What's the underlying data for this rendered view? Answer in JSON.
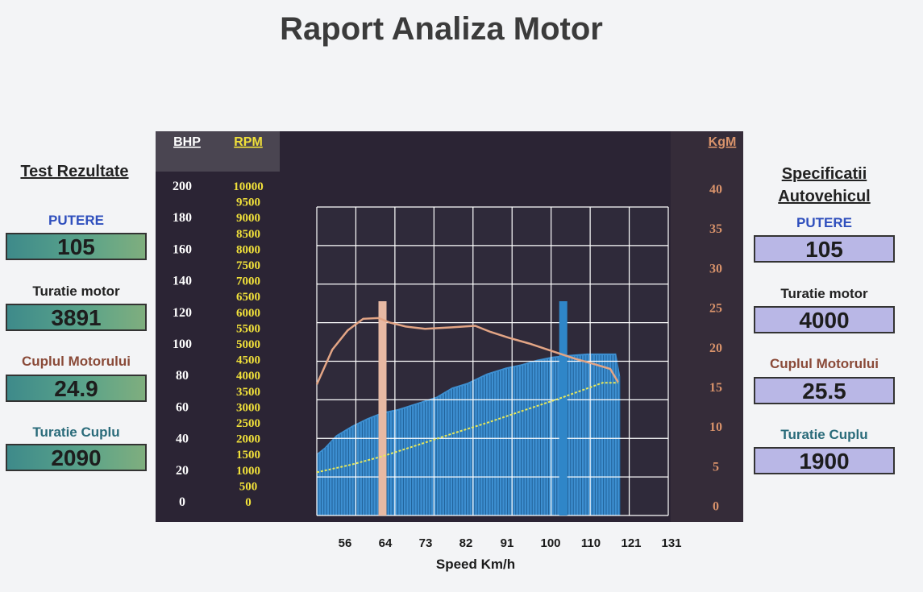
{
  "report_title": "Raport Analiza Motor",
  "left": {
    "heading": "Test Rezultate",
    "items": [
      {
        "label": "PUTERE",
        "value": "105",
        "color": "#2f4fbd"
      },
      {
        "label": "Turatie motor",
        "value": "3891",
        "color": "#222222"
      },
      {
        "label": "Cuplul Motorului",
        "value": "24.9",
        "color": "#8a4a38"
      },
      {
        "label": "Turatie Cuplu",
        "value": "2090",
        "color": "#2a6b7a"
      }
    ]
  },
  "right": {
    "heading_line1": "Specificatii",
    "heading_line2": "Autovehicul",
    "items": [
      {
        "label": "PUTERE",
        "value": "105",
        "color": "#2f4fbd"
      },
      {
        "label": "Turatie motor",
        "value": "4000",
        "color": "#222222"
      },
      {
        "label": "Cuplul Motorului",
        "value": "25.5",
        "color": "#8a4a38"
      },
      {
        "label": "Turatie Cuplu",
        "value": "1900",
        "color": "#2a6b7a"
      }
    ]
  },
  "chart_data": {
    "type": "area",
    "title": "",
    "xlabel": "Speed  Km/h",
    "x_ticks": [
      "56",
      "64",
      "73",
      "82",
      "91",
      "100",
      "110",
      "121",
      "131"
    ],
    "x_range": [
      47,
      138
    ],
    "axes": {
      "bhp": {
        "label": "BHP",
        "range": [
          0,
          200
        ],
        "ticks": [
          "200",
          "180",
          "160",
          "140",
          "120",
          "100",
          "80",
          "60",
          "40",
          "20",
          "0"
        ]
      },
      "rpm": {
        "label": "RPM",
        "range": [
          0,
          10000
        ],
        "ticks": [
          "10000",
          "9500",
          "9000",
          "8500",
          "8000",
          "7500",
          "7000",
          "6500",
          "6000",
          "5500",
          "5000",
          "4500",
          "4000",
          "3500",
          "3000",
          "2500",
          "2000",
          "1500",
          "1000",
          "500",
          "0"
        ]
      },
      "kgm": {
        "label": "KgM",
        "range": [
          0,
          40
        ],
        "ticks": [
          "40",
          "35",
          "30",
          "25",
          "20",
          "15",
          "10",
          "5",
          "0"
        ]
      }
    },
    "series": [
      {
        "name": "",
        "axis": "bhp",
        "color": "#3d8fd1",
        "x": [
          47,
          49,
          52,
          56,
          60,
          64,
          68,
          73,
          78,
          82,
          86,
          91,
          96,
          100,
          104,
          108,
          112,
          117,
          121,
          124.5,
          125.5
        ],
        "values": [
          40,
          44,
          52,
          58,
          63,
          67,
          69,
          73,
          77,
          83,
          86,
          92,
          96,
          98,
          101,
          103,
          104,
          105,
          105,
          105,
          91
        ]
      },
      {
        "name": "",
        "axis": "kgm",
        "color": "#e3a585",
        "x": [
          47,
          51,
          55,
          59,
          63,
          66,
          70,
          75,
          82,
          88,
          92,
          97,
          102,
          108,
          114,
          119,
          123,
          125
        ],
        "values": [
          17,
          21.5,
          24,
          25.5,
          25.6,
          25,
          24.5,
          24.2,
          24.4,
          24.6,
          23.8,
          23,
          22.3,
          21.3,
          20.3,
          19.6,
          19,
          17.3
        ]
      },
      {
        "name": "",
        "axis": "rpm",
        "color": "#e8e85a",
        "x": [
          47,
          56,
          64,
          73,
          82,
          91,
          100,
          110,
          121,
          125
        ],
        "values": [
          1400,
          1650,
          1920,
          2280,
          2650,
          3000,
          3380,
          3800,
          4300,
          4300
        ]
      }
    ],
    "markers": [
      {
        "name": "",
        "x": 64,
        "color": "#e8b9a3"
      },
      {
        "name": "",
        "x": 110.8,
        "color": "#2f86c8"
      }
    ],
    "grid": true
  }
}
